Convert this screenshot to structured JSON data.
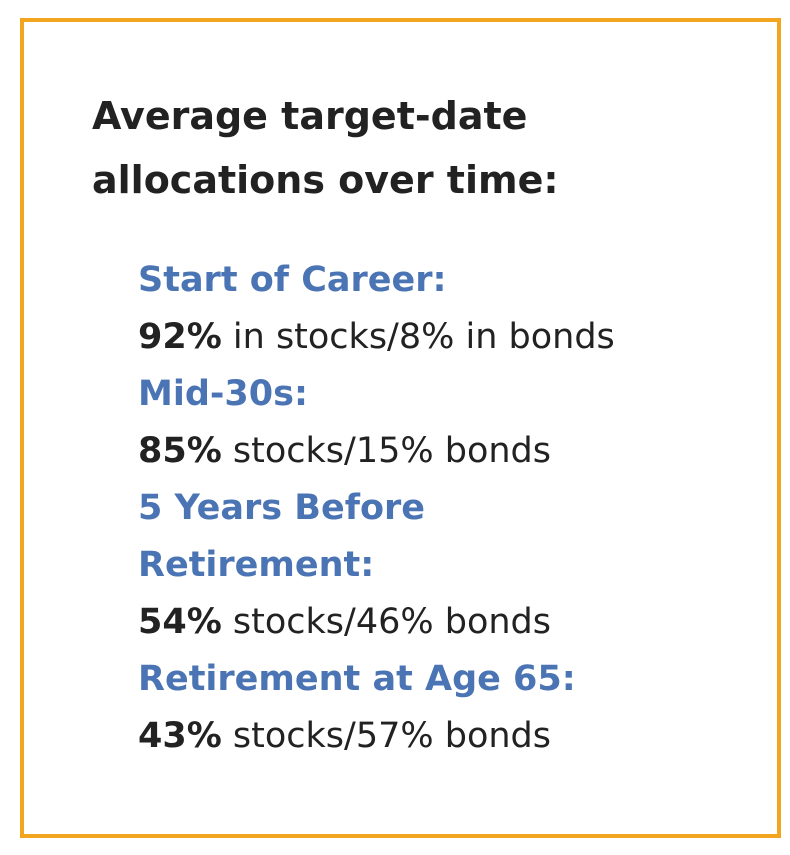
{
  "title": {
    "line1": "Average target-date",
    "line2": "allocations over time:"
  },
  "colors": {
    "border": "#f2a61f",
    "label": "#4a74b3",
    "text": "#222222"
  },
  "items": [
    {
      "label_lines": [
        "Start of Career:"
      ],
      "percent": "92%",
      "rest": " in stocks/8% in bonds"
    },
    {
      "label_lines": [
        "Mid-30s:"
      ],
      "percent": "85%",
      "rest": " stocks/15% bonds"
    },
    {
      "label_lines": [
        "5 Years Before",
        "Retirement:"
      ],
      "percent": "54%",
      "rest": " stocks/46% bonds"
    },
    {
      "label_lines": [
        "Retirement at Age 65:"
      ],
      "percent": "43%",
      "rest": " stocks/57% bonds"
    }
  ]
}
